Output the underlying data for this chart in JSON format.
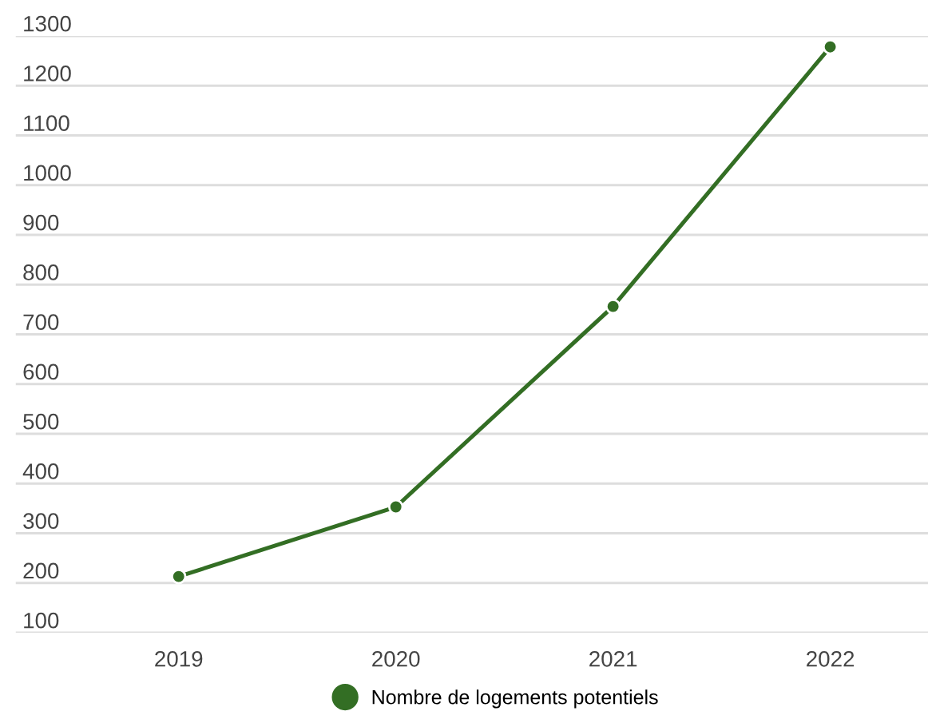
{
  "chart_data": {
    "type": "line",
    "categories": [
      "2019",
      "2020",
      "2021",
      "2022"
    ],
    "series": [
      {
        "name": "Nombre de logements potentiels",
        "color": "#336e24",
        "values": [
          213,
          353,
          756,
          1278
        ]
      }
    ],
    "ylim": [
      100,
      1300
    ],
    "yticks": [
      100,
      200,
      300,
      400,
      500,
      600,
      700,
      800,
      900,
      1000,
      1100,
      1200,
      1300
    ],
    "grid": "y",
    "legend": "bottom",
    "marker": "circle",
    "line_style": "solid"
  }
}
